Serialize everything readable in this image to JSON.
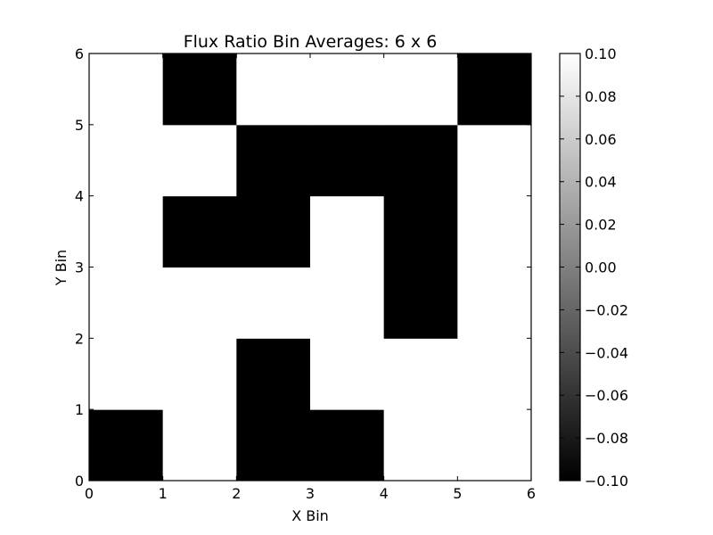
{
  "chart_data": {
    "type": "heatmap",
    "title": "Flux Ratio Bin Averages: 6 x 6",
    "xlabel": "X Bin",
    "ylabel": "Y Bin",
    "xlim": [
      0,
      6
    ],
    "ylim": [
      0,
      6
    ],
    "x_ticks": [
      "0",
      "1",
      "2",
      "3",
      "4",
      "5",
      "6"
    ],
    "y_ticks": [
      "0",
      "1",
      "2",
      "3",
      "4",
      "5",
      "6"
    ],
    "colormap": "gray",
    "color_low": "#000000",
    "color_high": "#ffffff",
    "colorbar": {
      "min": -0.1,
      "max": 0.1,
      "ticks": [
        "-0.10",
        "-0.08",
        "-0.06",
        "-0.04",
        "-0.02",
        "0.00",
        "0.02",
        "0.04",
        "0.06",
        "0.08",
        "0.10"
      ]
    },
    "grid": false,
    "rows_bottom_to_top": [
      [
        -0.1,
        0.1,
        -0.1,
        -0.1,
        0.1,
        0.1
      ],
      [
        0.1,
        0.1,
        -0.1,
        0.1,
        0.1,
        0.1
      ],
      [
        0.1,
        0.1,
        0.1,
        0.1,
        -0.1,
        0.1
      ],
      [
        0.1,
        -0.1,
        -0.1,
        0.1,
        -0.1,
        0.1
      ],
      [
        0.1,
        0.1,
        -0.1,
        -0.1,
        -0.1,
        0.1
      ],
      [
        0.1,
        -0.1,
        0.1,
        0.1,
        0.1,
        -0.1
      ]
    ]
  }
}
